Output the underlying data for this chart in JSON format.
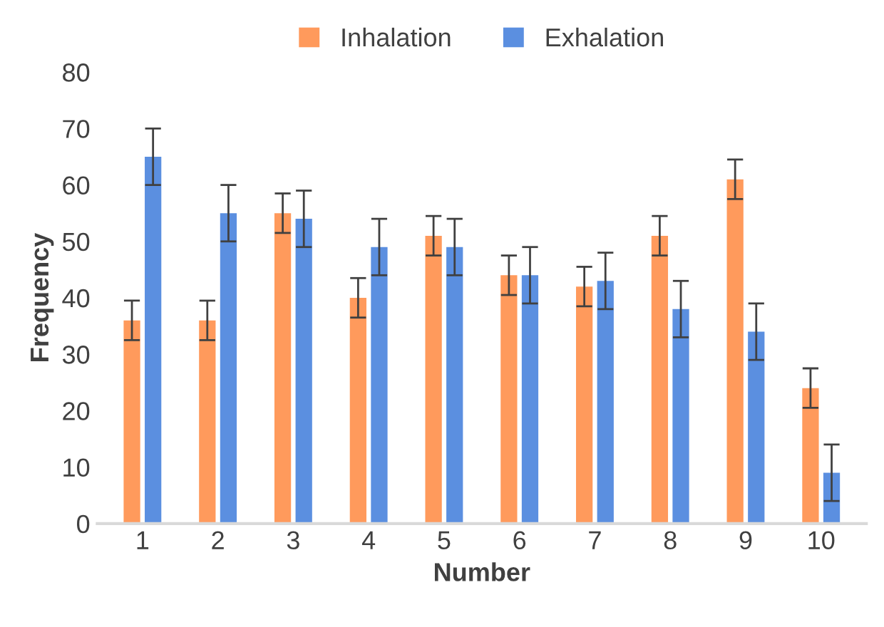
{
  "chart_data": {
    "type": "bar",
    "xlabel": "Number",
    "ylabel": "Frequency",
    "categories": [
      "1",
      "2",
      "3",
      "4",
      "5",
      "6",
      "7",
      "8",
      "9",
      "10"
    ],
    "series": [
      {
        "name": "Inhalation",
        "color": "#ff9a5c",
        "values": [
          36,
          36,
          55,
          40,
          51,
          44,
          42,
          51,
          61,
          24
        ],
        "errors": [
          3.5,
          3.5,
          3.5,
          3.5,
          3.5,
          3.5,
          3.5,
          3.5,
          3.5,
          3.5
        ]
      },
      {
        "name": "Exhalation",
        "color": "#5b8fe0",
        "values": [
          65,
          55,
          54,
          49,
          49,
          44,
          43,
          38,
          34,
          9
        ],
        "errors": [
          5,
          5,
          5,
          5,
          5,
          5,
          5,
          5,
          5,
          5
        ]
      }
    ],
    "ylim": [
      0,
      80
    ],
    "yticks": [
      0,
      10,
      20,
      30,
      40,
      50,
      60,
      70,
      80
    ],
    "grid": false,
    "legend": "top"
  }
}
